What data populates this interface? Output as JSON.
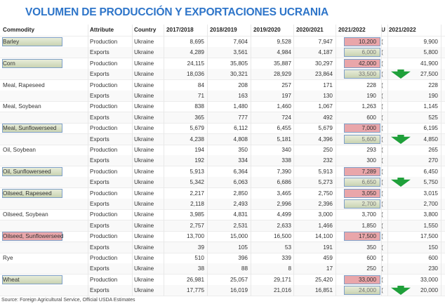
{
  "title": "VOLUMEN DE PRODUCCIÓN Y EXPORTACIONES UCRANIA",
  "headers": [
    "Commodity",
    "Attribute",
    "Country",
    "2017/2018",
    "2018/2019",
    "2019/2020",
    "2020/2021",
    "2021/2022",
    "U",
    "2021/2022"
  ],
  "rows": [
    [
      "Barley",
      "Production",
      "Ukraine",
      "8,695",
      "7,604",
      "9,528",
      "7,947",
      "10,200",
      "9,900"
    ],
    [
      "",
      "Exports",
      "Ukraine",
      "4,289",
      "3,561",
      "4,984",
      "4,187",
      "6,000",
      "5,800"
    ],
    [
      "Corn",
      "Production",
      "Ukraine",
      "24,115",
      "35,805",
      "35,887",
      "30,297",
      "42,000",
      "41,900"
    ],
    [
      "",
      "Exports",
      "Ukraine",
      "18,036",
      "30,321",
      "28,929",
      "23,864",
      "33,500",
      "27,500"
    ],
    [
      "Meal, Rapeseed",
      "Production",
      "Ukraine",
      "84",
      "208",
      "257",
      "171",
      "228",
      "228"
    ],
    [
      "",
      "Exports",
      "Ukraine",
      "71",
      "163",
      "197",
      "130",
      "190",
      "190"
    ],
    [
      "Meal, Soybean",
      "Production",
      "Ukraine",
      "838",
      "1,480",
      "1,460",
      "1,067",
      "1,263",
      "1,145"
    ],
    [
      "",
      "Exports",
      "Ukraine",
      "365",
      "777",
      "724",
      "492",
      "600",
      "525"
    ],
    [
      "Meal, Sunflowerseed",
      "Production",
      "Ukraine",
      "5,679",
      "6,112",
      "6,455",
      "5,679",
      "7,000",
      "6,195"
    ],
    [
      "",
      "Exports",
      "Ukraine",
      "4,238",
      "4,808",
      "5,181",
      "4,396",
      "5,600",
      "4,850"
    ],
    [
      "Oil, Soybean",
      "Production",
      "Ukraine",
      "194",
      "350",
      "340",
      "250",
      "293",
      "265"
    ],
    [
      "",
      "Exports",
      "Ukraine",
      "192",
      "334",
      "338",
      "232",
      "300",
      "270"
    ],
    [
      "Oil, Sunflowerseed",
      "Production",
      "Ukraine",
      "5,913",
      "6,364",
      "7,390",
      "5,913",
      "7,289",
      "6,450"
    ],
    [
      "",
      "Exports",
      "Ukraine",
      "5,342",
      "6,063",
      "6,686",
      "5,273",
      "6,650",
      "5,750"
    ],
    [
      "Oilseed, Rapeseed",
      "Production",
      "Ukraine",
      "2,217",
      "2,850",
      "3,465",
      "2,750",
      "3,050",
      "3,015"
    ],
    [
      "",
      "Exports",
      "Ukraine",
      "2,118",
      "2,493",
      "2,996",
      "2,396",
      "2,700",
      "2,700"
    ],
    [
      "Oilseed, Soybean",
      "Production",
      "Ukraine",
      "3,985",
      "4,831",
      "4,499",
      "3,000",
      "3,700",
      "3,800"
    ],
    [
      "",
      "Exports",
      "Ukraine",
      "2,757",
      "2,531",
      "2,633",
      "1,466",
      "1,850",
      "1,550"
    ],
    [
      "Oilseed, Sunflowerseed",
      "Production",
      "Ukraine",
      "13,700",
      "15,000",
      "16,500",
      "14,100",
      "17,500",
      "17,500"
    ],
    [
      "",
      "Exports",
      "Ukraine",
      "39",
      "105",
      "53",
      "191",
      "350",
      "150"
    ],
    [
      "Rye",
      "Production",
      "Ukraine",
      "510",
      "396",
      "339",
      "459",
      "600",
      "600"
    ],
    [
      "",
      "Exports",
      "Ukraine",
      "38",
      "88",
      "8",
      "17",
      "250",
      "230"
    ],
    [
      "Wheat",
      "Production",
      "Ukraine",
      "26,981",
      "25,057",
      "29,171",
      "25,420",
      "33,000",
      "33,000"
    ],
    [
      "",
      "Exports",
      "Ukraine",
      "17,775",
      "16,019",
      "21,016",
      "16,851",
      "24,000",
      "20,000"
    ]
  ],
  "unit_marker": "(",
  "commodity_highlight": {
    "0": "g",
    "2": "g",
    "8": "g",
    "12": "g",
    "14": "g",
    "18": "r",
    "22": "g"
  },
  "value_highlight": {
    "0": "r",
    "1": "g",
    "2": "r",
    "3": "g",
    "8": "r",
    "9": "g",
    "12": "r",
    "13": "g",
    "14": "r",
    "15": "g",
    "18": "r",
    "22": "r",
    "23": "g"
  },
  "down_arrows": [
    3,
    9,
    13,
    23
  ],
  "source": "Source: Foreign Agricultural Service, Official USDA Estimates",
  "colors": {
    "title": "#2e75c9",
    "arrow": "#1fa03a",
    "red": "#e9a6aa"
  }
}
